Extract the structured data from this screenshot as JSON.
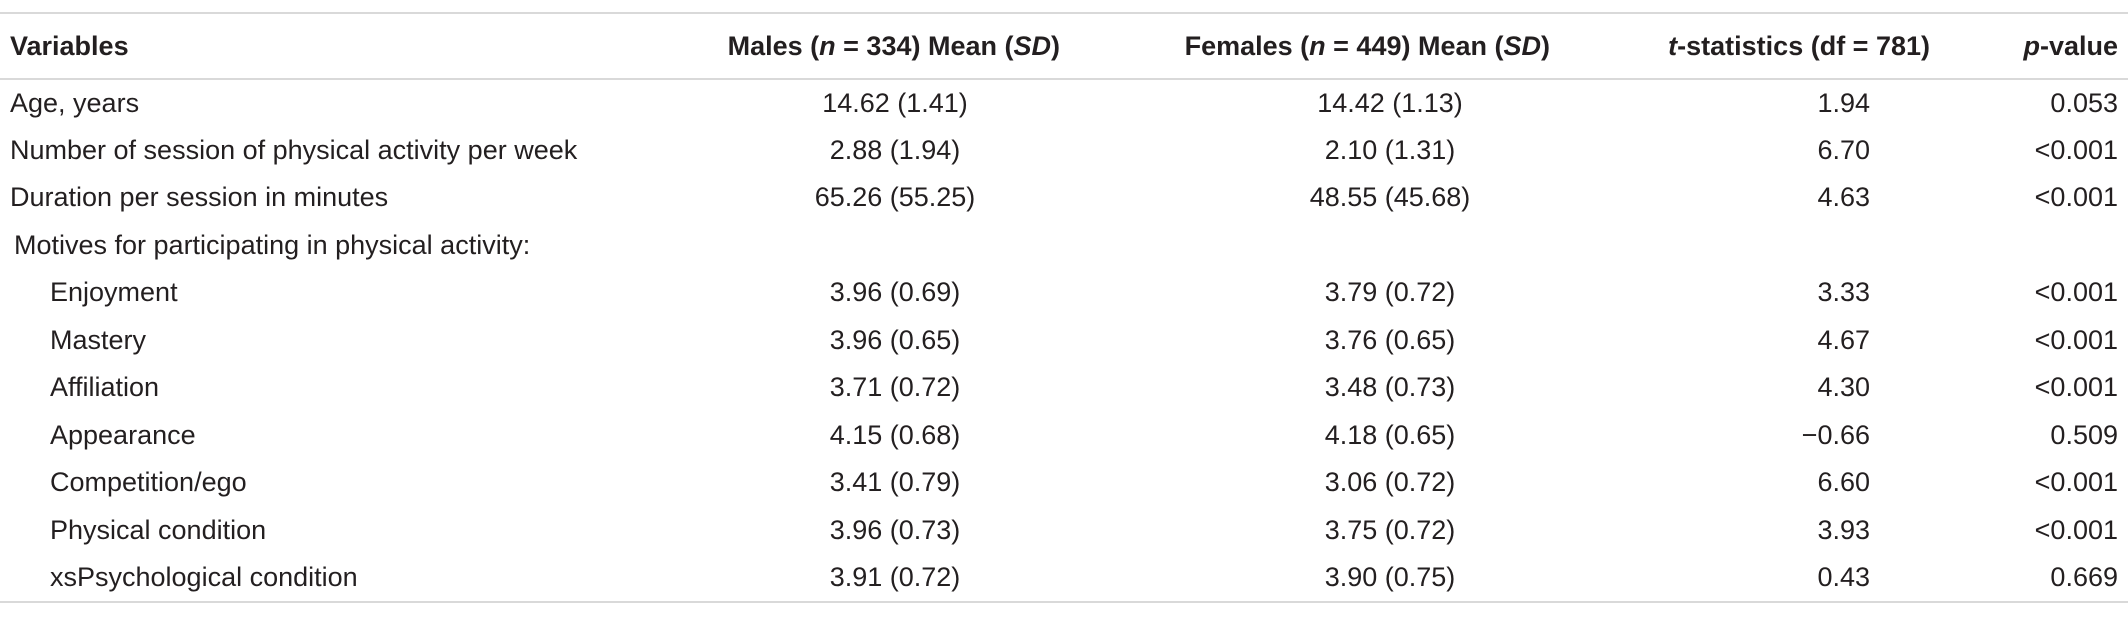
{
  "header": {
    "variables": "Variables",
    "males_pre": "Males (",
    "males_n": "n",
    "males_mid": " = 334) Mean (",
    "males_sd": "SD",
    "males_post": ")",
    "females_pre": "Females (",
    "females_n": "n",
    "females_mid": " = 449) Mean (",
    "females_sd": "SD",
    "females_post": ")",
    "t_italic": "t",
    "t_rest": "-statistics (df = 781)",
    "p_italic": "p",
    "p_rest": "-value"
  },
  "rows": [
    {
      "variable": "Age, years",
      "males": "14.62 (1.41)",
      "females": "14.42 (1.13)",
      "t": "1.94",
      "p": "0.053"
    },
    {
      "variable": "Number of session of physical activity per week",
      "males": "2.88 (1.94)",
      "females": "2.10 (1.31)",
      "t": "6.70",
      "p": "<0.001"
    },
    {
      "variable": "Duration per session in minutes",
      "males": "65.26 (55.25)",
      "females": "48.55 (45.68)",
      "t": "4.63",
      "p": "<0.001"
    },
    {
      "variable": "Motives for participating in physical activity:",
      "males": "",
      "females": "",
      "t": "",
      "p": ""
    },
    {
      "variable": "Enjoyment",
      "males": "3.96 (0.69)",
      "females": "3.79 (0.72)",
      "t": "3.33",
      "p": "<0.001"
    },
    {
      "variable": "Mastery",
      "males": "3.96 (0.65)",
      "females": "3.76 (0.65)",
      "t": "4.67",
      "p": "<0.001"
    },
    {
      "variable": "Affiliation",
      "males": "3.71 (0.72)",
      "females": "3.48 (0.73)",
      "t": "4.30",
      "p": "<0.001"
    },
    {
      "variable": "Appearance",
      "males": "4.15 (0.68)",
      "females": "4.18 (0.65)",
      "t": "−0.66",
      "p": "0.509"
    },
    {
      "variable": "Competition/ego",
      "males": "3.41 (0.79)",
      "females": "3.06 (0.72)",
      "t": "6.60",
      "p": "<0.001"
    },
    {
      "variable": "Physical condition",
      "males": "3.96 (0.73)",
      "females": "3.75 (0.72)",
      "t": "3.93",
      "p": "<0.001"
    },
    {
      "variable": "xsPsychological condition",
      "males": "3.91 (0.72)",
      "females": "3.90 (0.75)",
      "t": "0.43",
      "p": "0.669"
    }
  ]
}
